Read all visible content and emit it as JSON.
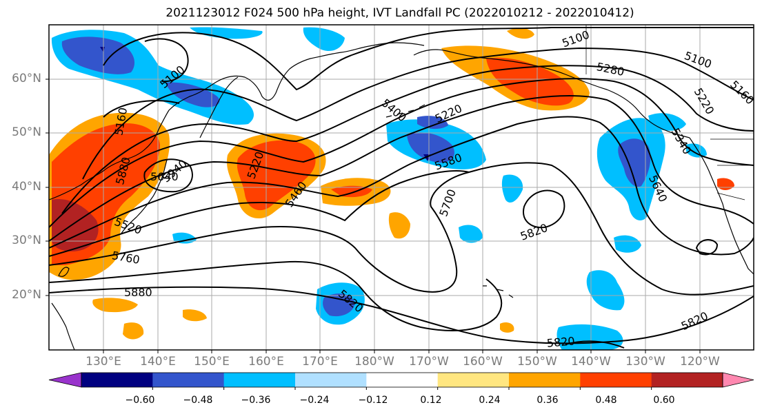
{
  "title": "2021123012 F024 500 hPa height, IVT Landfall PC (2022010212 - 2022010412)",
  "map": {
    "projection": "cylindrical",
    "lat_labels": [
      "60°N",
      "50°N",
      "40°N",
      "30°N",
      "20°N"
    ],
    "lon_labels": [
      "130°E",
      "140°E",
      "150°E",
      "160°E",
      "170°E",
      "180°W",
      "170°W",
      "160°W",
      "150°W",
      "140°W",
      "130°W",
      "120°W"
    ],
    "gridlines": true,
    "coastlines": true,
    "height_contours": {
      "units": "m",
      "labels": [
        "5100",
        "5100",
        "5100",
        "5160",
        "5160",
        "5220",
        "5220",
        "5220",
        "5280",
        "5340",
        "5400",
        "5460",
        "5520",
        "5580",
        "5640",
        "5700",
        "5760",
        "5820",
        "5820",
        "5820",
        "5820",
        "5880",
        "5880",
        "5940",
        "5640"
      ]
    },
    "ivt_shading": {
      "colors": [
        "#9933cc",
        "#000080",
        "#3355cc",
        "#00bfff",
        "#b0e0ff",
        "#ffffff",
        "#ffe680",
        "#ffa500",
        "#ff4000",
        "#b22222",
        "#ff88b0"
      ]
    }
  },
  "colorbar": {
    "ticks": [
      "−0.60",
      "−0.48",
      "−0.36",
      "−0.24",
      "−0.12",
      "0.12",
      "0.24",
      "0.36",
      "0.48",
      "0.60"
    ],
    "colors": [
      "#9933cc",
      "#000080",
      "#3355cc",
      "#00bfff",
      "#b0e0ff",
      "#ffffff",
      "#ffe680",
      "#ffa500",
      "#ff4000",
      "#b22222",
      "#ff88b0"
    ],
    "extend": "both"
  }
}
